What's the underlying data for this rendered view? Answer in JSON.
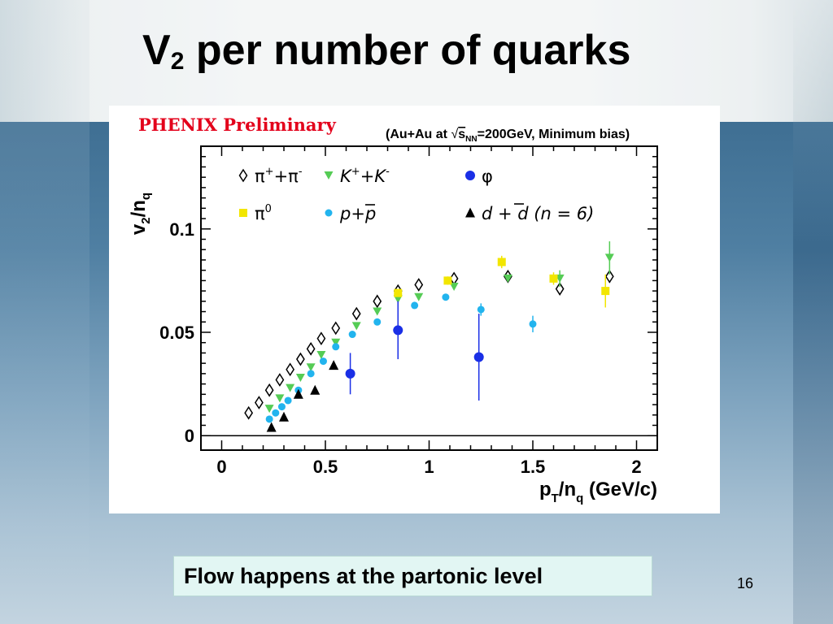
{
  "slide": {
    "title_main": "V",
    "title_sub": "2",
    "title_rest": " per number of quarks",
    "caption": "Flow happens at the partonic level",
    "page_number": "16"
  },
  "chart_data": {
    "type": "scatter",
    "overlay_label": "PHENIX Preliminary",
    "header": {
      "pre": "(Au+Au at ",
      "sqrt_s": "s",
      "nn": "NN",
      "post": "=200GeV, Minimum bias)"
    },
    "ylabel": {
      "a": "v",
      "sub1": "2",
      "b": "/n",
      "sub2": "q"
    },
    "xlabel": {
      "a": "p",
      "sub1": "T",
      "b": "/n",
      "sub2": "q",
      "c": " (GeV/c)"
    },
    "xlim": [
      -0.1,
      2.1
    ],
    "ylim": [
      -0.007,
      0.14
    ],
    "x_ticks": [
      {
        "v": 0,
        "label": "0"
      },
      {
        "v": 0.5,
        "label": "0.5"
      },
      {
        "v": 1,
        "label": "1"
      },
      {
        "v": 1.5,
        "label": "1.5"
      },
      {
        "v": 2,
        "label": "2"
      }
    ],
    "y_ticks": [
      {
        "v": 0,
        "label": "0"
      },
      {
        "v": 0.05,
        "label": "0.05"
      },
      {
        "v": 0.1,
        "label": "0.1"
      }
    ],
    "zero_line": true,
    "grid": false,
    "legend_position": "top",
    "series": [
      {
        "name": "π⁺+π⁻",
        "marker": "diamond-open",
        "color": "#000000",
        "points": [
          [
            0.13,
            0.011
          ],
          [
            0.18,
            0.016
          ],
          [
            0.23,
            0.022
          ],
          [
            0.28,
            0.027
          ],
          [
            0.33,
            0.032
          ],
          [
            0.38,
            0.037
          ],
          [
            0.43,
            0.042
          ],
          [
            0.48,
            0.047
          ],
          [
            0.55,
            0.052
          ],
          [
            0.65,
            0.059
          ],
          [
            0.75,
            0.065
          ],
          [
            0.85,
            0.07
          ],
          [
            0.95,
            0.073
          ],
          [
            1.12,
            0.076
          ],
          [
            1.38,
            0.077
          ],
          [
            1.63,
            0.071
          ],
          [
            1.87,
            0.077
          ]
        ],
        "err": [
          0,
          0,
          0,
          0,
          0,
          0,
          0,
          0,
          0,
          0,
          0,
          0,
          0,
          0,
          0,
          0,
          0.003
        ]
      },
      {
        "name": "K⁺+K⁻",
        "marker": "triangle-down",
        "color": "#55cc55",
        "points": [
          [
            0.23,
            0.013
          ],
          [
            0.28,
            0.018
          ],
          [
            0.33,
            0.023
          ],
          [
            0.38,
            0.028
          ],
          [
            0.43,
            0.033
          ],
          [
            0.48,
            0.039
          ],
          [
            0.55,
            0.045
          ],
          [
            0.65,
            0.053
          ],
          [
            0.75,
            0.06
          ],
          [
            0.85,
            0.066
          ],
          [
            0.95,
            0.067
          ],
          [
            1.12,
            0.072
          ],
          [
            1.38,
            0.076
          ],
          [
            1.63,
            0.076
          ],
          [
            1.87,
            0.086
          ]
        ],
        "err": [
          0,
          0,
          0,
          0,
          0,
          0,
          0,
          0,
          0,
          0,
          0,
          0,
          0,
          0.004,
          0.008
        ]
      },
      {
        "name": "φ",
        "marker": "circle",
        "color": "#1a2fe6",
        "points": [
          [
            0.62,
            0.03
          ],
          [
            0.85,
            0.051
          ],
          [
            1.24,
            0.038
          ]
        ],
        "err": [
          0.01,
          0.014,
          0.021
        ]
      },
      {
        "name": "π⁰",
        "marker": "square",
        "color": "#f2e600",
        "points": [
          [
            0.85,
            0.069
          ],
          [
            1.09,
            0.075
          ],
          [
            1.35,
            0.084
          ],
          [
            1.6,
            0.076
          ],
          [
            1.85,
            0.07
          ]
        ],
        "err": [
          0,
          0.002,
          0.003,
          0.003,
          0.008
        ]
      },
      {
        "name": "p+p̄",
        "marker": "circle",
        "color": "#22b4ee",
        "points": [
          [
            0.23,
            0.008
          ],
          [
            0.26,
            0.011
          ],
          [
            0.29,
            0.014
          ],
          [
            0.32,
            0.017
          ],
          [
            0.37,
            0.022
          ],
          [
            0.43,
            0.03
          ],
          [
            0.49,
            0.036
          ],
          [
            0.55,
            0.043
          ],
          [
            0.63,
            0.049
          ],
          [
            0.75,
            0.055
          ],
          [
            0.93,
            0.063
          ],
          [
            1.08,
            0.067
          ],
          [
            1.25,
            0.061
          ],
          [
            1.5,
            0.054
          ]
        ],
        "err": [
          0,
          0,
          0,
          0,
          0,
          0,
          0,
          0,
          0,
          0,
          0,
          0,
          0.003,
          0.004
        ]
      },
      {
        "name": "d + d̄ (n = 6)",
        "marker": "triangle-up",
        "color": "#000000",
        "points": [
          [
            0.24,
            0.004
          ],
          [
            0.3,
            0.009
          ],
          [
            0.37,
            0.02
          ],
          [
            0.45,
            0.022
          ],
          [
            0.54,
            0.034
          ]
        ],
        "err": [
          0,
          0,
          0,
          0,
          0.002
        ]
      }
    ],
    "legend": [
      {
        "id": "pi",
        "marker": "diamond-open",
        "color": "#000000",
        "text": "π",
        "sup1": "+",
        "mid": "+π",
        "sup2": "-",
        "post": ""
      },
      {
        "id": "k",
        "marker": "triangle-down",
        "color": "#55cc55",
        "text": "K",
        "sup1": "+",
        "mid": "+K",
        "sup2": "-",
        "post": ""
      },
      {
        "id": "phi",
        "marker": "circle",
        "color": "#1a2fe6",
        "text": "φ",
        "sup1": "",
        "mid": "",
        "sup2": "",
        "post": ""
      },
      {
        "id": "pi0",
        "marker": "square",
        "color": "#f2e600",
        "text": "π",
        "sup1": "0",
        "mid": "",
        "sup2": "",
        "post": ""
      },
      {
        "id": "p",
        "marker": "circle",
        "color": "#22b4ee",
        "text": "p+",
        "sup1": "",
        "mid": "p",
        "sup2": "",
        "post": ""
      },
      {
        "id": "d",
        "marker": "triangle-up",
        "color": "#000000",
        "text": "d + ",
        "sup1": "",
        "mid": "d",
        "sup2": "",
        "post": " (n = 6)"
      }
    ]
  }
}
